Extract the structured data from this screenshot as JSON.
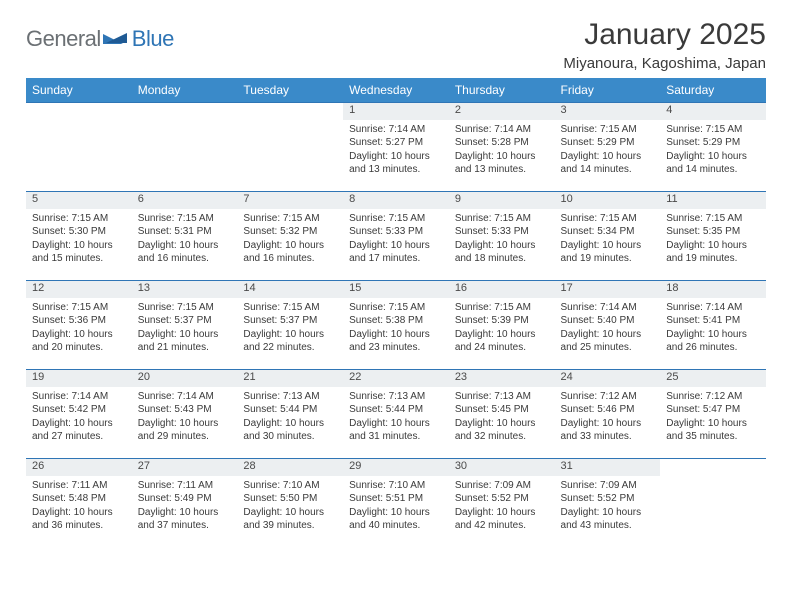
{
  "logo": {
    "text_gray": "General",
    "text_blue": "Blue"
  },
  "title": "January 2025",
  "location": "Miyanoura, Kagoshima, Japan",
  "header_bg": "#3a8ac9",
  "daynum_bg": "#eceff1",
  "border_color": "#2f75b5",
  "days": [
    "Sunday",
    "Monday",
    "Tuesday",
    "Wednesday",
    "Thursday",
    "Friday",
    "Saturday"
  ],
  "weeks": [
    [
      null,
      null,
      null,
      {
        "n": "1",
        "sr": "7:14 AM",
        "ss": "5:27 PM",
        "dl": "10 hours and 13 minutes."
      },
      {
        "n": "2",
        "sr": "7:14 AM",
        "ss": "5:28 PM",
        "dl": "10 hours and 13 minutes."
      },
      {
        "n": "3",
        "sr": "7:15 AM",
        "ss": "5:29 PM",
        "dl": "10 hours and 14 minutes."
      },
      {
        "n": "4",
        "sr": "7:15 AM",
        "ss": "5:29 PM",
        "dl": "10 hours and 14 minutes."
      }
    ],
    [
      {
        "n": "5",
        "sr": "7:15 AM",
        "ss": "5:30 PM",
        "dl": "10 hours and 15 minutes."
      },
      {
        "n": "6",
        "sr": "7:15 AM",
        "ss": "5:31 PM",
        "dl": "10 hours and 16 minutes."
      },
      {
        "n": "7",
        "sr": "7:15 AM",
        "ss": "5:32 PM",
        "dl": "10 hours and 16 minutes."
      },
      {
        "n": "8",
        "sr": "7:15 AM",
        "ss": "5:33 PM",
        "dl": "10 hours and 17 minutes."
      },
      {
        "n": "9",
        "sr": "7:15 AM",
        "ss": "5:33 PM",
        "dl": "10 hours and 18 minutes."
      },
      {
        "n": "10",
        "sr": "7:15 AM",
        "ss": "5:34 PM",
        "dl": "10 hours and 19 minutes."
      },
      {
        "n": "11",
        "sr": "7:15 AM",
        "ss": "5:35 PM",
        "dl": "10 hours and 19 minutes."
      }
    ],
    [
      {
        "n": "12",
        "sr": "7:15 AM",
        "ss": "5:36 PM",
        "dl": "10 hours and 20 minutes."
      },
      {
        "n": "13",
        "sr": "7:15 AM",
        "ss": "5:37 PM",
        "dl": "10 hours and 21 minutes."
      },
      {
        "n": "14",
        "sr": "7:15 AM",
        "ss": "5:37 PM",
        "dl": "10 hours and 22 minutes."
      },
      {
        "n": "15",
        "sr": "7:15 AM",
        "ss": "5:38 PM",
        "dl": "10 hours and 23 minutes."
      },
      {
        "n": "16",
        "sr": "7:15 AM",
        "ss": "5:39 PM",
        "dl": "10 hours and 24 minutes."
      },
      {
        "n": "17",
        "sr": "7:14 AM",
        "ss": "5:40 PM",
        "dl": "10 hours and 25 minutes."
      },
      {
        "n": "18",
        "sr": "7:14 AM",
        "ss": "5:41 PM",
        "dl": "10 hours and 26 minutes."
      }
    ],
    [
      {
        "n": "19",
        "sr": "7:14 AM",
        "ss": "5:42 PM",
        "dl": "10 hours and 27 minutes."
      },
      {
        "n": "20",
        "sr": "7:14 AM",
        "ss": "5:43 PM",
        "dl": "10 hours and 29 minutes."
      },
      {
        "n": "21",
        "sr": "7:13 AM",
        "ss": "5:44 PM",
        "dl": "10 hours and 30 minutes."
      },
      {
        "n": "22",
        "sr": "7:13 AM",
        "ss": "5:44 PM",
        "dl": "10 hours and 31 minutes."
      },
      {
        "n": "23",
        "sr": "7:13 AM",
        "ss": "5:45 PM",
        "dl": "10 hours and 32 minutes."
      },
      {
        "n": "24",
        "sr": "7:12 AM",
        "ss": "5:46 PM",
        "dl": "10 hours and 33 minutes."
      },
      {
        "n": "25",
        "sr": "7:12 AM",
        "ss": "5:47 PM",
        "dl": "10 hours and 35 minutes."
      }
    ],
    [
      {
        "n": "26",
        "sr": "7:11 AM",
        "ss": "5:48 PM",
        "dl": "10 hours and 36 minutes."
      },
      {
        "n": "27",
        "sr": "7:11 AM",
        "ss": "5:49 PM",
        "dl": "10 hours and 37 minutes."
      },
      {
        "n": "28",
        "sr": "7:10 AM",
        "ss": "5:50 PM",
        "dl": "10 hours and 39 minutes."
      },
      {
        "n": "29",
        "sr": "7:10 AM",
        "ss": "5:51 PM",
        "dl": "10 hours and 40 minutes."
      },
      {
        "n": "30",
        "sr": "7:09 AM",
        "ss": "5:52 PM",
        "dl": "10 hours and 42 minutes."
      },
      {
        "n": "31",
        "sr": "7:09 AM",
        "ss": "5:52 PM",
        "dl": "10 hours and 43 minutes."
      },
      null
    ]
  ],
  "labels": {
    "sunrise": "Sunrise:",
    "sunset": "Sunset:",
    "daylight": "Daylight:"
  }
}
